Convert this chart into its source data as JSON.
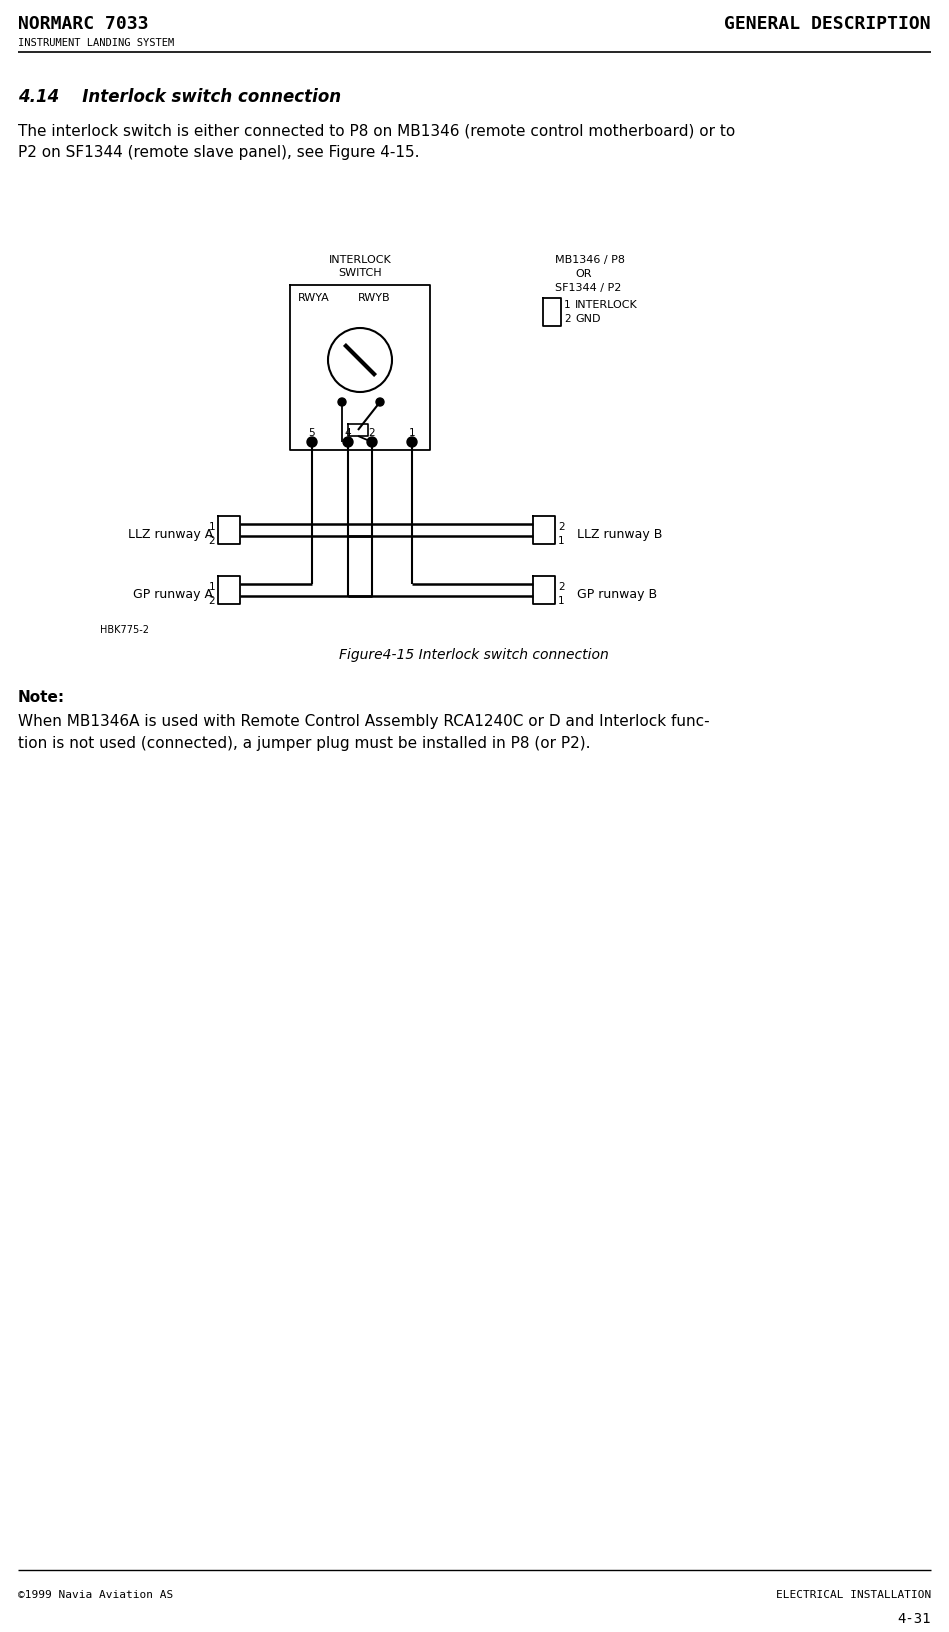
{
  "title_left": "NORMARC 7033",
  "title_right": "GENERAL DESCRIPTION",
  "subtitle_left": "INSTRUMENT LANDING SYSTEM",
  "footer_left": "©1999 Navia Aviation AS",
  "footer_right": "ELECTRICAL INSTALLATION",
  "page_number": "4-31",
  "section_title": "4.14    Interlock switch connection",
  "body_text_line1": "The interlock switch is either connected to P8 on MB1346 (remote control motherboard) or to",
  "body_text_line2": "P2 on SF1344 (remote slave panel), see Figure 4-15.",
  "figure_caption": "Figure4-15 Interlock switch connection",
  "note_title": "Note:",
  "note_text_line1": "When MB1346A is used with Remote Control Assembly RCA1240C or D and Interlock func-",
  "note_text_line2": "tion is not used (connected), a jumper plug must be installed in P8 (or P2).",
  "label_interlock_switch_line1": "INTERLOCK",
  "label_interlock_switch_line2": "SWITCH",
  "label_mb1346_line1": "MB1346 / P8",
  "label_mb1346_line2": "OR",
  "label_mb1346_line3": "SF1344 / P2",
  "label_rwya": "RWYA",
  "label_rwyb": "RWYB",
  "label_interlock": "INTERLOCK",
  "label_gnd": "GND",
  "label_llz_a": "LLZ runway A",
  "label_llz_b": "LLZ runway B",
  "label_gp_a": "GP runway A",
  "label_gp_b": "GP runway B",
  "label_hbk": "HBK775-2",
  "bg_color": "#ffffff",
  "line_color": "#000000",
  "text_color": "#000000"
}
